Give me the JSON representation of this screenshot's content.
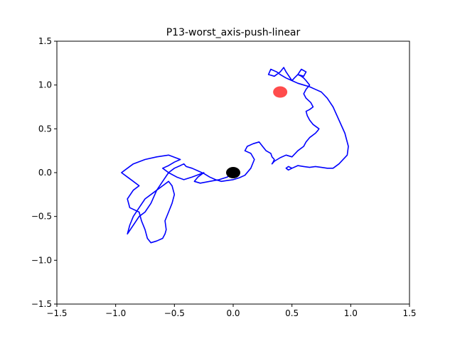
{
  "chart_data": {
    "type": "line",
    "title": "P13-worst_axis-push-linear",
    "xlabel": "",
    "ylabel": "",
    "xlim": [
      -1.5,
      1.5
    ],
    "ylim": [
      -1.5,
      1.5
    ],
    "grid": false,
    "xticks": [
      -1.5,
      -1.0,
      -0.5,
      0.0,
      0.5,
      1.0,
      1.5
    ],
    "yticks": [
      -1.5,
      -1.0,
      -0.5,
      0.0,
      0.5,
      1.0,
      1.5
    ],
    "xtick_labels": [
      "−1.5",
      "−1.0",
      "−0.5",
      "0.0",
      "0.5",
      "1.0",
      "1.5"
    ],
    "ytick_labels": [
      "−1.5",
      "−1.0",
      "−0.5",
      "0.0",
      "0.5",
      "1.0",
      "1.5"
    ],
    "series": [
      {
        "color": "#0000ff",
        "x": [
          0.0,
          -0.05,
          -0.12,
          -0.2,
          -0.28,
          -0.33,
          -0.3,
          -0.25,
          -0.35,
          -0.42,
          -0.48,
          -0.55,
          -0.6,
          -0.55,
          -0.5,
          -0.45,
          -0.55,
          -0.65,
          -0.75,
          -0.85,
          -0.9,
          -0.95,
          -0.9,
          -0.85,
          -0.8,
          -0.85,
          -0.9,
          -0.88,
          -0.8,
          -0.78,
          -0.75,
          -0.73,
          -0.7,
          -0.65,
          -0.6,
          -0.58,
          -0.57,
          -0.58,
          -0.55,
          -0.52,
          -0.5,
          -0.52,
          -0.55,
          -0.6,
          -0.65,
          -0.7,
          -0.75,
          -0.8,
          -0.85,
          -0.88,
          -0.9,
          -0.85,
          -0.8,
          -0.75,
          -0.7,
          -0.65,
          -0.6,
          -0.55,
          -0.5,
          -0.45,
          -0.42,
          -0.4,
          -0.35,
          -0.3,
          -0.25,
          -0.2,
          -0.15,
          -0.1,
          -0.05,
          0.0,
          0.05,
          0.1,
          0.15,
          0.18,
          0.15,
          0.1,
          0.12,
          0.17,
          0.22,
          0.25,
          0.28,
          0.32,
          0.33,
          0.35,
          0.34,
          0.33,
          0.35,
          0.4,
          0.45,
          0.5,
          0.55,
          0.6,
          0.62,
          0.65,
          0.7,
          0.72,
          0.73,
          0.68,
          0.65,
          0.63,
          0.62,
          0.65,
          0.68,
          0.66,
          0.62,
          0.6,
          0.62,
          0.65,
          0.62,
          0.6,
          0.58,
          0.55,
          0.6,
          0.62,
          0.58,
          0.55,
          0.52,
          0.5,
          0.45,
          0.43,
          0.4,
          0.35,
          0.3,
          0.32,
          0.37,
          0.4,
          0.45,
          0.5,
          0.55,
          0.6,
          0.65,
          0.7,
          0.75,
          0.8,
          0.85,
          0.9,
          0.95,
          0.98,
          0.97,
          0.9,
          0.85,
          0.8,
          0.75,
          0.7,
          0.65,
          0.6,
          0.55,
          0.5,
          0.47,
          0.45,
          0.47,
          0.5,
          0.55
        ],
        "y": [
          0.0,
          -0.05,
          -0.08,
          -0.1,
          -0.12,
          -0.1,
          -0.05,
          0.0,
          -0.05,
          -0.08,
          -0.05,
          0.0,
          0.05,
          0.08,
          0.12,
          0.15,
          0.2,
          0.18,
          0.15,
          0.1,
          0.05,
          0.0,
          -0.05,
          -0.1,
          -0.15,
          -0.2,
          -0.3,
          -0.4,
          -0.45,
          -0.55,
          -0.65,
          -0.75,
          -0.8,
          -0.78,
          -0.75,
          -0.7,
          -0.65,
          -0.55,
          -0.45,
          -0.35,
          -0.25,
          -0.15,
          -0.1,
          -0.15,
          -0.2,
          -0.25,
          -0.3,
          -0.4,
          -0.5,
          -0.6,
          -0.7,
          -0.6,
          -0.5,
          -0.45,
          -0.35,
          -0.2,
          -0.1,
          0.0,
          0.05,
          0.08,
          0.1,
          0.07,
          0.05,
          0.02,
          -0.01,
          -0.05,
          -0.08,
          -0.1,
          -0.09,
          -0.08,
          -0.06,
          -0.03,
          0.05,
          0.15,
          0.22,
          0.25,
          0.3,
          0.33,
          0.35,
          0.3,
          0.25,
          0.22,
          0.18,
          0.15,
          0.12,
          0.1,
          0.13,
          0.17,
          0.2,
          0.18,
          0.25,
          0.3,
          0.35,
          0.4,
          0.45,
          0.48,
          0.5,
          0.55,
          0.6,
          0.65,
          0.7,
          0.72,
          0.75,
          0.8,
          0.85,
          0.9,
          0.95,
          1.0,
          1.05,
          1.08,
          1.1,
          1.12,
          1.1,
          1.15,
          1.18,
          1.12,
          1.08,
          1.05,
          1.15,
          1.2,
          1.15,
          1.1,
          1.12,
          1.18,
          1.15,
          1.12,
          1.08,
          1.05,
          1.02,
          1.0,
          0.98,
          0.95,
          0.92,
          0.85,
          0.75,
          0.6,
          0.45,
          0.3,
          0.2,
          0.1,
          0.05,
          0.05,
          0.06,
          0.07,
          0.06,
          0.07,
          0.08,
          0.05,
          0.07,
          0.05,
          0.03,
          0.05,
          0.08
        ]
      }
    ],
    "markers": [
      {
        "x": 0.0,
        "y": 0.0,
        "color": "#000000"
      },
      {
        "x": 0.4,
        "y": 0.92,
        "color": "#ff0000"
      }
    ]
  }
}
